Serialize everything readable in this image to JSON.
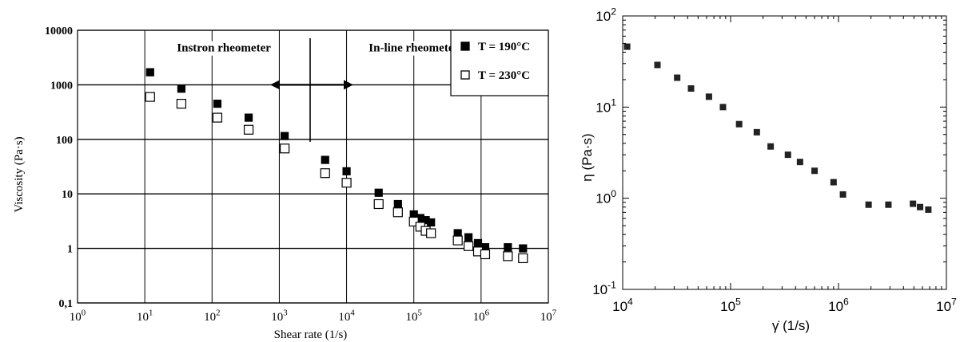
{
  "chart_data": [
    {
      "type": "scatter",
      "xscale": "log",
      "yscale": "log",
      "xlim": [
        1,
        10000000
      ],
      "ylim": [
        0.1,
        10000
      ],
      "xlabel": "Shear rate (1/s)",
      "ylabel": "Viscosity (Pa·s)",
      "x_ticks": [
        {
          "value": 1,
          "base": "10",
          "exp": "0"
        },
        {
          "value": 10,
          "base": "10",
          "exp": "1"
        },
        {
          "value": 100,
          "base": "10",
          "exp": "2"
        },
        {
          "value": 1000,
          "base": "10",
          "exp": "3"
        },
        {
          "value": 10000,
          "base": "10",
          "exp": "4"
        },
        {
          "value": 100000,
          "base": "10",
          "exp": "5"
        },
        {
          "value": 1000000,
          "base": "10",
          "exp": "6"
        },
        {
          "value": 10000000,
          "base": "10",
          "exp": "7"
        }
      ],
      "y_ticks": [
        {
          "value": 0.1,
          "label": "0,1"
        },
        {
          "value": 1,
          "label": "1"
        },
        {
          "value": 10,
          "label": "10"
        },
        {
          "value": 100,
          "label": "100"
        },
        {
          "value": 1000,
          "label": "1000"
        },
        {
          "value": 10000,
          "label": "10000"
        }
      ],
      "annotations": [
        {
          "text": "Instron rheometer",
          "x": 150,
          "y": 4500
        },
        {
          "text": "In-line rheometer",
          "x": 100000,
          "y": 4500
        }
      ],
      "legend_position": "top-right",
      "series": [
        {
          "name": "T = 190°C",
          "marker": "filled-square",
          "color": "#000000",
          "x": [
            12,
            35,
            120,
            350,
            1200,
            4800,
            10000,
            30000,
            58000,
            100000,
            125000,
            150000,
            180000,
            450000,
            650000,
            900000,
            1150000,
            2500000,
            4200000
          ],
          "y": [
            1700,
            850,
            450,
            250,
            115,
            42,
            26,
            10.5,
            6.5,
            4.2,
            3.6,
            3.3,
            3.0,
            1.9,
            1.6,
            1.25,
            1.05,
            1.05,
            1.0
          ]
        },
        {
          "name": "T = 230°C",
          "marker": "open-square",
          "color": "#000000",
          "x": [
            12,
            35,
            120,
            350,
            1200,
            4800,
            10000,
            30000,
            58000,
            100000,
            125000,
            150000,
            180000,
            450000,
            650000,
            900000,
            1150000,
            2500000,
            4200000
          ],
          "y": [
            600,
            450,
            250,
            150,
            68,
            24,
            16,
            6.5,
            4.6,
            3.1,
            2.5,
            2.1,
            1.9,
            1.4,
            1.1,
            0.88,
            0.78,
            0.72,
            0.66
          ]
        }
      ]
    },
    {
      "type": "scatter",
      "xscale": "log",
      "yscale": "log",
      "xlim": [
        10000,
        10000000
      ],
      "ylim": [
        0.1,
        100
      ],
      "xlabel": "γ̇ (1/s)",
      "ylabel": "η (Pa·s)",
      "x_ticks": [
        {
          "value": 10000,
          "base": "10",
          "exp": "4"
        },
        {
          "value": 100000,
          "base": "10",
          "exp": "5"
        },
        {
          "value": 1000000,
          "base": "10",
          "exp": "6"
        },
        {
          "value": 10000000,
          "base": "10",
          "exp": "7"
        }
      ],
      "y_ticks": [
        {
          "value": 0.1,
          "base": "10",
          "exp": "-1"
        },
        {
          "value": 1,
          "base": "10",
          "exp": "0"
        },
        {
          "value": 10,
          "base": "10",
          "exp": "1"
        },
        {
          "value": 100,
          "base": "10",
          "exp": "2"
        }
      ],
      "series": [
        {
          "marker": "filled-square",
          "color": "#222222",
          "x": [
            11000,
            21000,
            32000,
            43000,
            63000,
            85000,
            120000,
            175000,
            235000,
            340000,
            440000,
            600000,
            900000,
            1100000,
            1900000,
            2900000,
            4900000,
            5700000,
            6800000
          ],
          "y": [
            46,
            29,
            21,
            16,
            13,
            10,
            6.5,
            5.3,
            3.7,
            3.0,
            2.5,
            2.0,
            1.5,
            1.1,
            0.85,
            0.85,
            0.87,
            0.8,
            0.75
          ]
        }
      ]
    }
  ]
}
